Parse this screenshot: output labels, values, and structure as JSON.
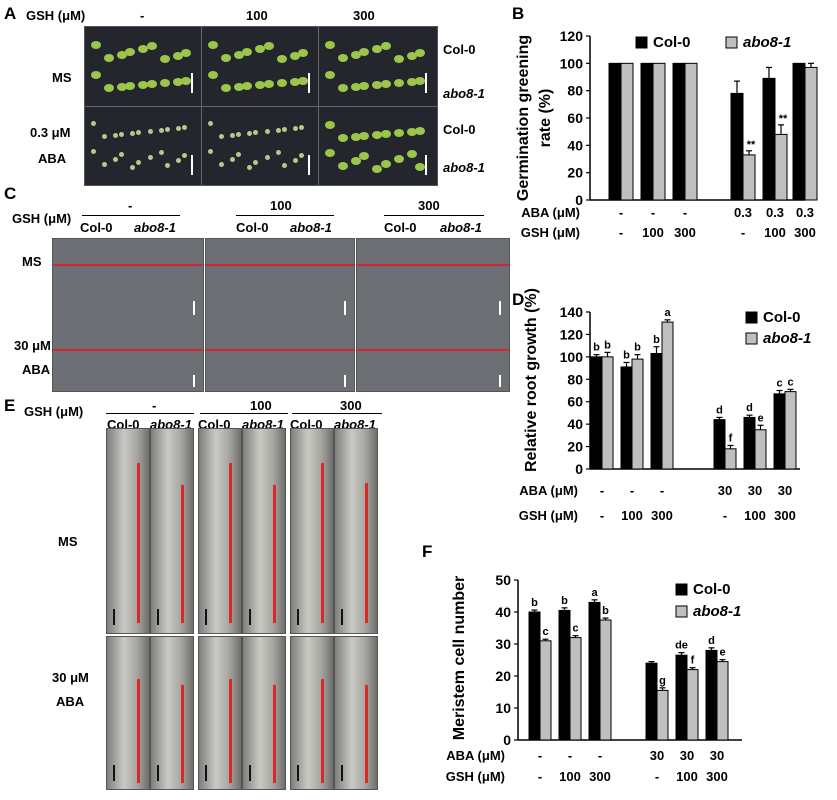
{
  "panels": {
    "A": {
      "letter": "A",
      "gsh_label": "GSH (μM)",
      "gsh_levels": [
        "-",
        "100",
        "300"
      ],
      "row_labels": [
        "MS",
        "0.3 μM",
        "ABA"
      ],
      "genotypes": [
        "Col-0",
        "abo8-1",
        "Col-0",
        "abo8-1"
      ]
    },
    "C": {
      "letter": "C",
      "gsh_label": "GSH (μM)",
      "gsh_levels": [
        "-",
        "100",
        "300"
      ],
      "genotypes": [
        "Col-0",
        "abo8-1"
      ],
      "row_labels": [
        "MS",
        "30 μM",
        "ABA"
      ]
    },
    "E": {
      "letter": "E",
      "gsh_label": "GSH (μM)",
      "gsh_levels": [
        "-",
        "100",
        "300"
      ],
      "genotypes": [
        "Col-0",
        "abo8-1",
        "Col-0",
        "abo8-1",
        "Col-0",
        "abo8-1"
      ],
      "row_labels": [
        "MS",
        "30 μM",
        "ABA"
      ]
    },
    "B": {
      "letter": "B"
    },
    "D": {
      "letter": "D"
    },
    "F": {
      "letter": "F"
    }
  },
  "chart_data": [
    {
      "panel": "B",
      "type": "bar",
      "ylabel": "Germination greening rate (%)",
      "ylabel_lines": [
        "Germination greening",
        "rate (%)"
      ],
      "ylim": [
        0,
        120
      ],
      "yticks": [
        0,
        20,
        40,
        60,
        80,
        100,
        120
      ],
      "legend": [
        "Col-0",
        "abo8-1"
      ],
      "legend_placement": "top",
      "row_labels": [
        "ABA (μM)",
        "GSH (μM)"
      ],
      "aba": [
        "-",
        "-",
        "-",
        "0.3",
        "0.3",
        "0.3"
      ],
      "gsh": [
        "-",
        "100",
        "300",
        "-",
        "100",
        "300"
      ],
      "series": [
        {
          "name": "Col-0",
          "color": "#000000",
          "values": [
            100,
            100,
            100,
            78,
            89,
            100
          ],
          "errors": [
            0,
            0,
            0,
            9,
            8,
            0
          ]
        },
        {
          "name": "abo8-1",
          "color": "#bfbfbf",
          "values": [
            100,
            100,
            100,
            33,
            48,
            97
          ],
          "errors": [
            0,
            0,
            0,
            3,
            7,
            3
          ]
        }
      ],
      "annotations": [
        "",
        "",
        "",
        "**",
        "**",
        ""
      ]
    },
    {
      "panel": "D",
      "type": "bar",
      "ylabel": "Relative root growth (%)",
      "ylim": [
        0,
        140
      ],
      "yticks": [
        0,
        20,
        40,
        60,
        80,
        100,
        120,
        140
      ],
      "legend": [
        "Col-0",
        "abo8-1"
      ],
      "legend_placement": "top-right",
      "row_labels": [
        "ABA (μM)",
        "GSH (μM)"
      ],
      "aba": [
        "-",
        "-",
        "-",
        "30",
        "30",
        "30"
      ],
      "gsh": [
        "-",
        "100",
        "300",
        "-",
        "100",
        "300"
      ],
      "series": [
        {
          "name": "Col-0",
          "color": "#000000",
          "values": [
            100,
            91,
            103,
            44,
            46,
            67
          ],
          "errors": [
            2,
            4,
            6,
            2,
            2,
            3
          ],
          "letters": [
            "b",
            "b",
            "b",
            "d",
            "d",
            "c"
          ]
        },
        {
          "name": "abo8-1",
          "color": "#bfbfbf",
          "values": [
            100,
            98,
            131,
            18,
            35,
            69
          ],
          "errors": [
            4,
            4,
            2,
            3,
            4,
            2
          ],
          "letters": [
            "b",
            "b",
            "a",
            "f",
            "e",
            "c"
          ]
        }
      ]
    },
    {
      "panel": "F",
      "type": "bar",
      "ylabel": "Meristem cell number",
      "ylim": [
        0,
        50
      ],
      "yticks": [
        0,
        10,
        20,
        30,
        40,
        50
      ],
      "legend": [
        "Col-0",
        "abo8-1"
      ],
      "legend_placement": "top-right",
      "row_labels": [
        "ABA (μM)",
        "GSH (μM)"
      ],
      "aba": [
        "-",
        "-",
        "-",
        "30",
        "30",
        "30"
      ],
      "gsh": [
        "-",
        "100",
        "300",
        "-",
        "100",
        "300"
      ],
      "series": [
        {
          "name": "Col-0",
          "color": "#000000",
          "values": [
            40,
            40.5,
            43,
            24,
            26.5,
            28
          ],
          "errors": [
            0.6,
            0.8,
            0.8,
            0.5,
            0.8,
            0.8
          ],
          "letters": [
            "b",
            "b",
            "a",
            "",
            "de",
            "d"
          ]
        },
        {
          "name": "abo8-1",
          "color": "#bfbfbf",
          "values": [
            31,
            32,
            37.5,
            15.5,
            22,
            24.5
          ],
          "errors": [
            0.5,
            0.6,
            0.6,
            0.8,
            0.6,
            0.6
          ],
          "letters": [
            "c",
            "c",
            "b",
            "g",
            "f",
            "e"
          ]
        }
      ]
    }
  ]
}
